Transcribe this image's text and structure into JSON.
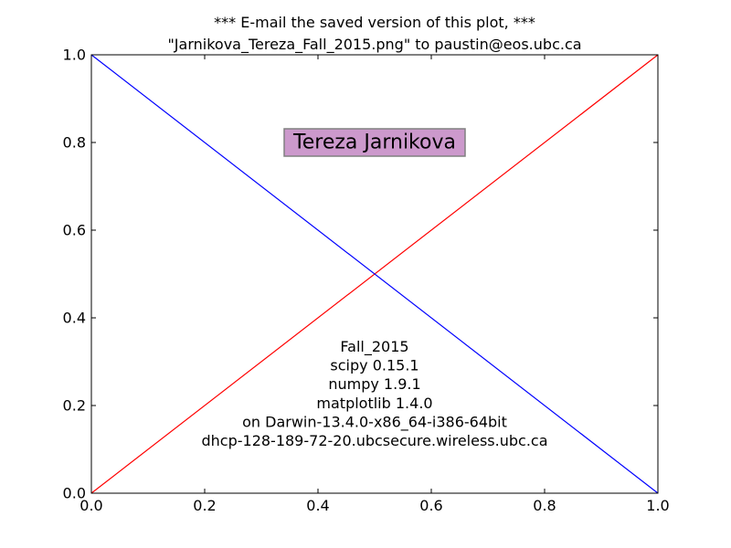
{
  "chart_data": {
    "type": "line",
    "title_lines": [
      "*** E-mail the saved version of this plot, ***",
      "\"Jarnikova_Tereza_Fall_2015.png\" to paustin@eos.ubc.ca"
    ],
    "xlim": [
      0,
      1
    ],
    "ylim": [
      0,
      1
    ],
    "x_ticks": [
      0.0,
      0.2,
      0.4,
      0.6,
      0.8,
      1.0
    ],
    "x_tick_labels": [
      "0.0",
      "0.2",
      "0.4",
      "0.6",
      "0.8",
      "1.0"
    ],
    "y_ticks": [
      0.0,
      0.2,
      0.4,
      0.6,
      0.8,
      1.0
    ],
    "y_tick_labels": [
      "0.0",
      "0.2",
      "0.4",
      "0.6",
      "0.8",
      "1.0"
    ],
    "grid": false,
    "series": [
      {
        "color": "#ff0000",
        "x": [
          0,
          1
        ],
        "y": [
          0,
          1
        ]
      },
      {
        "color": "#0000ff",
        "x": [
          0,
          1
        ],
        "y": [
          1,
          0
        ]
      }
    ],
    "name_box": {
      "text": "Tereza Jarnikova",
      "x": 0.5,
      "y": 0.8,
      "facecolor": "#cc99cc"
    },
    "info_text": {
      "x": 0.5,
      "y": 0.1,
      "lines": [
        "Fall_2015",
        "scipy 0.15.1",
        "numpy 1.9.1",
        "matplotlib 1.4.0",
        "on Darwin-13.4.0-x86_64-i386-64bit",
        "dhcp-128-189-72-20.ubcsecure.wireless.ubc.ca"
      ]
    }
  }
}
